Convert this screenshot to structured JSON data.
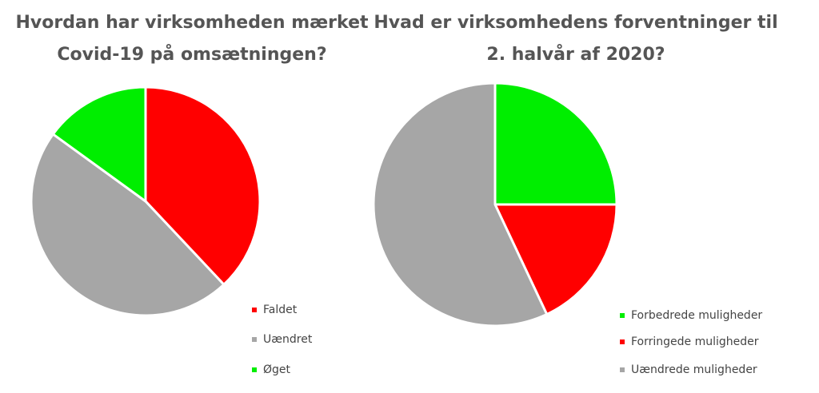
{
  "chart_data": [
    {
      "type": "pie",
      "title": [
        "Hvordan har virksomheden mærket",
        "Covid-19 på omsætningen?"
      ],
      "categories": [
        "Faldet",
        "Uændret",
        "Øget"
      ],
      "values": [
        38,
        47,
        15
      ],
      "colors": [
        "#ff0000",
        "#a6a6a6",
        "#00ee00"
      ]
    },
    {
      "type": "pie",
      "title": [
        "Hvad er virksomhedens forventninger til",
        "2. halvår af 2020?"
      ],
      "categories": [
        "Forbedrede muligheder",
        "Forringede muligheder",
        "Uændrede muligheder"
      ],
      "values": [
        25,
        18,
        57
      ],
      "colors": [
        "#00ee00",
        "#ff0000",
        "#a6a6a6"
      ]
    }
  ]
}
